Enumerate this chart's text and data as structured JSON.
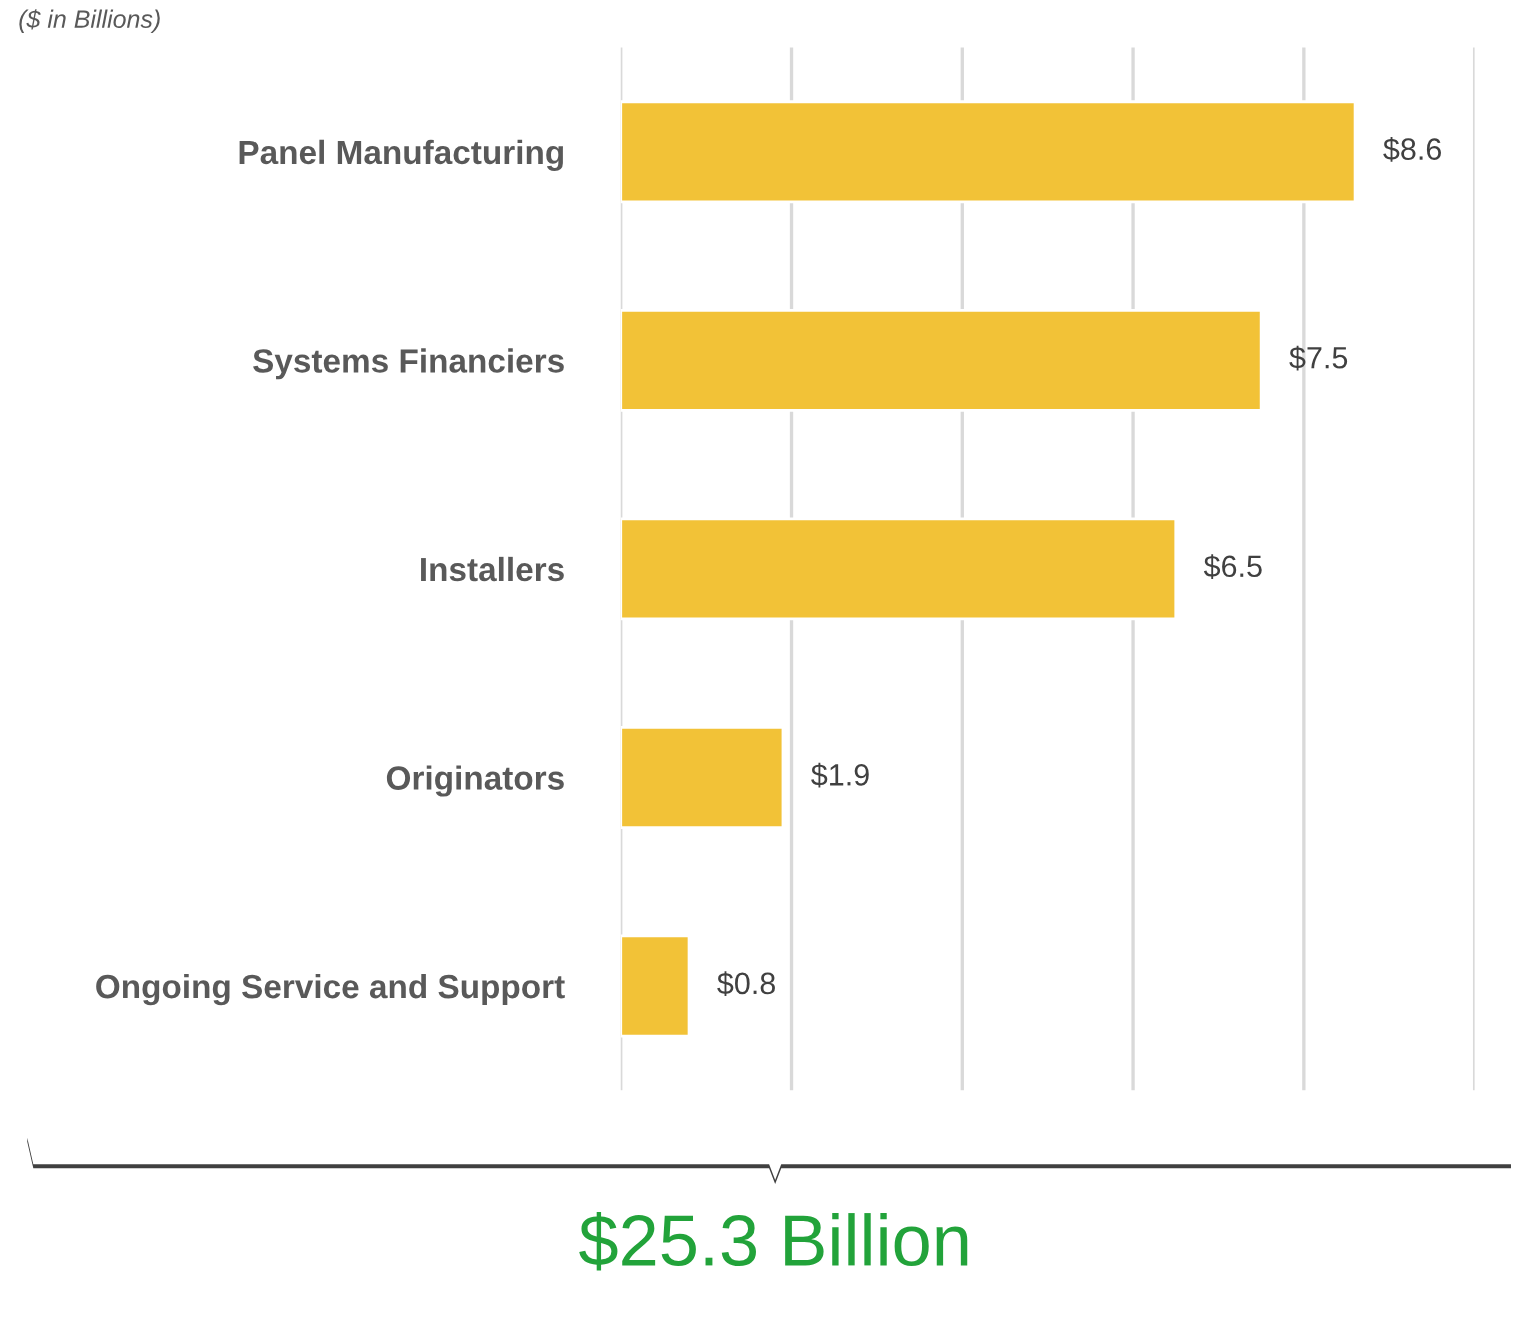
{
  "chart_data": {
    "type": "bar",
    "orientation": "horizontal",
    "subtitle": "($ in Billions)",
    "categories": [
      "Panel Manufacturing",
      "Systems Financiers",
      "Installers",
      "Originators",
      "Ongoing Service and Support"
    ],
    "values": [
      8.6,
      7.5,
      6.5,
      1.9,
      0.8
    ],
    "value_labels": [
      "$8.6",
      "$7.5",
      "$6.5",
      "$1.9",
      "$0.8"
    ],
    "color": "#f2c237",
    "xlim": [
      0,
      10
    ],
    "xticks": [
      {
        "value": 0,
        "label": null
      },
      {
        "value": 2,
        "label": null
      },
      {
        "value": 4,
        "label": null
      },
      {
        "value": 6,
        "label": null
      },
      {
        "value": 8,
        "label": null
      },
      {
        "value": 10,
        "label": null
      }
    ],
    "grid": "x",
    "tick_labels": "y",
    "annotations": [
      "$25.3 Billion"
    ]
  }
}
